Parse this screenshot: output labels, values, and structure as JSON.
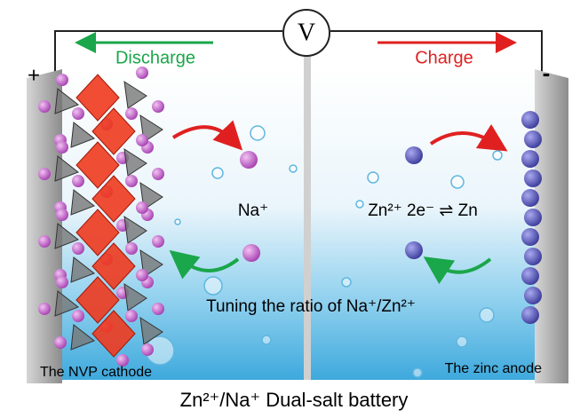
{
  "voltmeter": "V",
  "discharge": "Discharge",
  "charge": "Charge",
  "plus_sign": "+",
  "minus_sign": "-",
  "sodium_ion": "Na⁺",
  "zinc_reaction": "Zn²⁺ 2e⁻ ⇌ Zn",
  "tuning_note": "Tuning the ratio of Na⁺/Zn²⁺",
  "cathode_label": "The NVP cathode",
  "anode_label": "The zinc anode",
  "caption": "Zn²⁺/Na⁺ Dual-salt battery"
}
